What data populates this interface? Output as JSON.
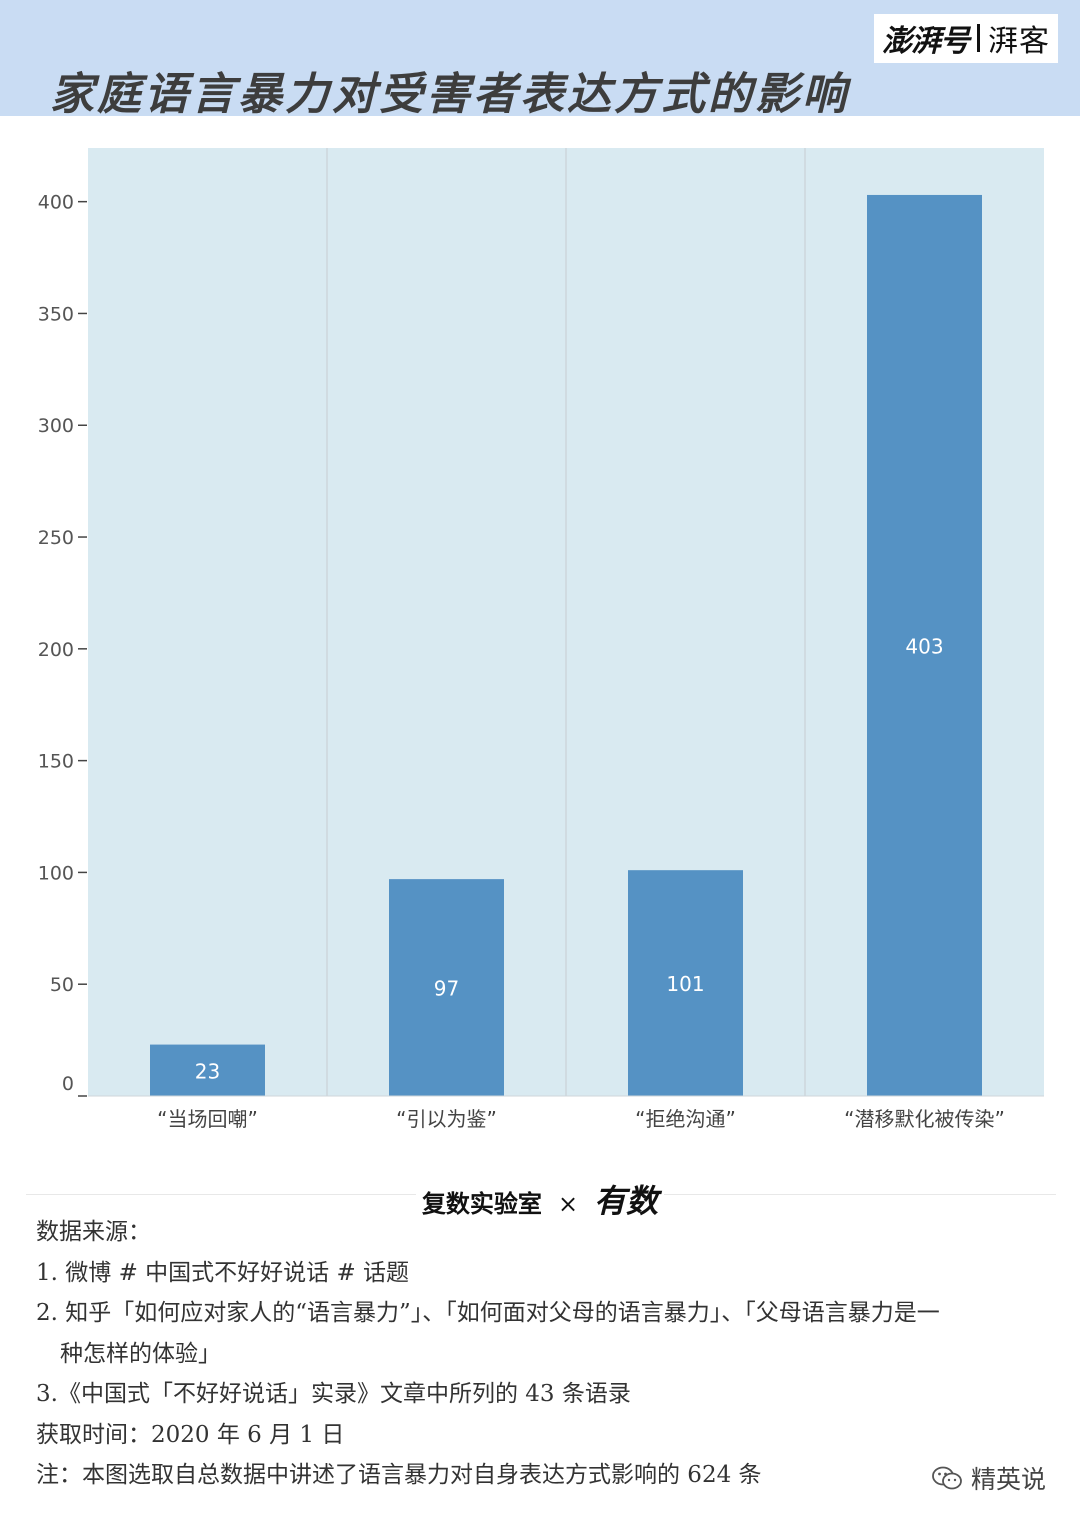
{
  "header": {
    "brand": "澎湃号",
    "brand_sub": "湃客",
    "title": "家庭语言暴力对受害者表达方式的影响"
  },
  "chart_data": {
    "type": "bar",
    "categories": [
      "“当场回嘲”",
      "“引以为鉴”",
      "“拒绝沟通”",
      "“潜移默化被传染”"
    ],
    "values": [
      23,
      97,
      101,
      403
    ],
    "data_labels": [
      "23",
      "97",
      "101",
      "403"
    ],
    "yticks": [
      "0",
      "50",
      "100",
      "150",
      "200",
      "250",
      "300",
      "350",
      "400"
    ],
    "ylim": [
      0,
      424
    ],
    "xlabel": "",
    "ylabel": "",
    "grid": "vertical category separators",
    "legend": "none",
    "colors": {
      "bar": "#5592c4",
      "plot_bg": "#d9eaf1",
      "separator": "#c6ccd1",
      "label": "#ffffff"
    }
  },
  "footer": {
    "logo_left": "复数实验室",
    "logo_sep": "×",
    "logo_right": "有数",
    "sources": {
      "heading": "数据来源：",
      "item1": "1. 微博 # 中国式不好好说话 # 话题",
      "item2a": "2. 知乎「如何应对家人的“语言暴力”」、「如何面对父母的语言暴力」、「父母语言暴力是一",
      "item2b": "种怎样的体验」",
      "item3": "3.《中国式「不好好说话」实录》文章中所列的 43 条语录",
      "time": "获取时间：2020 年 6 月 1 日",
      "note": "注：本图选取自总数据中讲述了语言暴力对自身表达方式影响的 624 条"
    },
    "watermark": "精英说"
  },
  "colors": {
    "header_bg": "#c9dcf3",
    "title": "#3d3d3d"
  }
}
